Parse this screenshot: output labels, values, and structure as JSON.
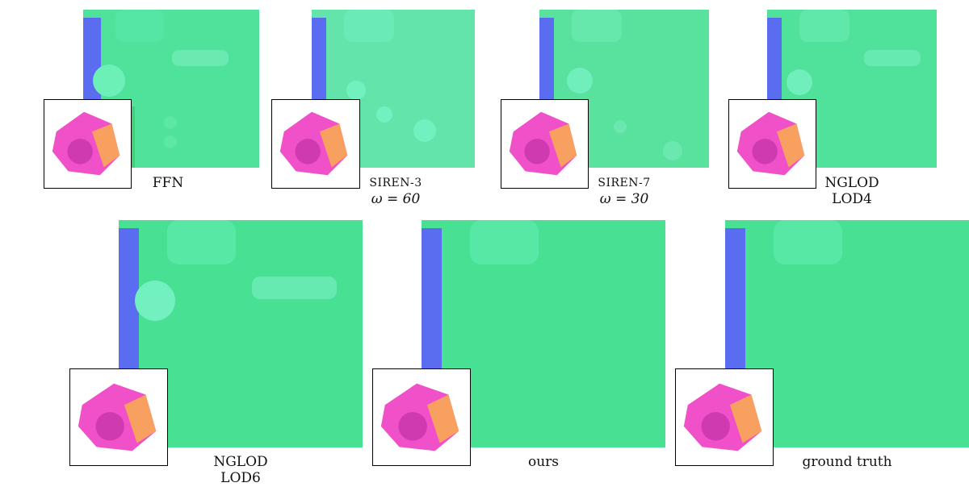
{
  "figure": {
    "panels": [
      {
        "id": "ffn",
        "caption_lines": [
          "FFN"
        ]
      },
      {
        "id": "siren3",
        "caption_lines": [
          "SIREN-3",
          "ω = 60"
        ]
      },
      {
        "id": "siren7",
        "caption_lines": [
          "SIREN-7",
          "ω = 30"
        ]
      },
      {
        "id": "nglod4",
        "caption_lines": [
          "NGLOD",
          "LOD4"
        ]
      },
      {
        "id": "nglod6",
        "caption_lines": [
          "NGLOD",
          "LOD6"
        ]
      },
      {
        "id": "ours",
        "caption_lines": [
          "ours"
        ]
      },
      {
        "id": "gt",
        "caption_lines": [
          "ground truth"
        ]
      }
    ]
  },
  "colors": {
    "surface_green": "#46e08c",
    "surface_blue": "#5a6cf0",
    "inset_pink": "#f050c8",
    "inset_orange": "#f8a060"
  }
}
